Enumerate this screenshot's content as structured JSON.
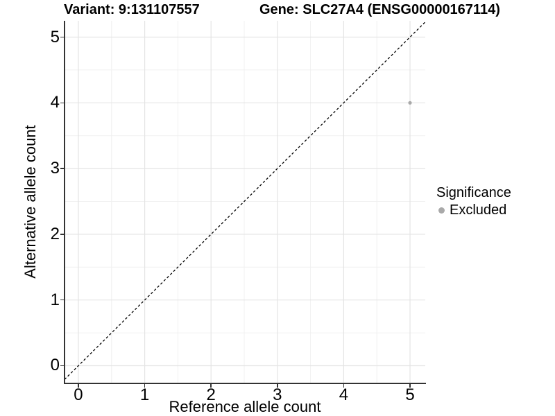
{
  "header": {
    "variant_title": "Variant: 9:131107557",
    "gene_title": "Gene: SLC27A4 (ENSG00000167114)"
  },
  "legend": {
    "title": "Significance",
    "position": "right",
    "items": [
      {
        "label": "Excluded",
        "color": "#a9a9a9"
      }
    ]
  },
  "colors": {
    "background": "#ffffff",
    "grid_major": "#e4e4e4",
    "grid_minor": "#f0f0f0",
    "axis_line": "#333333",
    "identity_line": "#000000",
    "point_excluded": "#a9a9a9"
  },
  "chart_data": {
    "type": "scatter",
    "xlabel": "Reference allele count",
    "ylabel": "Alternative allele count",
    "xlim": [
      -0.209,
      5.23
    ],
    "ylim": [
      -0.269,
      5.248
    ],
    "x_major_ticks": [
      0,
      1,
      2,
      3,
      4,
      5
    ],
    "y_major_ticks": [
      0,
      1,
      2,
      3,
      4,
      5
    ],
    "x_minor_ticks": [
      0.5,
      1.5,
      2.5,
      3.5,
      4.5
    ],
    "y_minor_ticks": [
      0.5,
      1.5,
      2.5,
      3.5,
      4.5
    ],
    "grid": "major+minor",
    "abline": {
      "slope": 1,
      "intercept": 0,
      "style": "dashed"
    },
    "series": [
      {
        "name": "Excluded",
        "color": "#a9a9a9",
        "point_radius": 2.6,
        "points": [
          {
            "x": 5,
            "y": 4
          }
        ]
      }
    ]
  }
}
